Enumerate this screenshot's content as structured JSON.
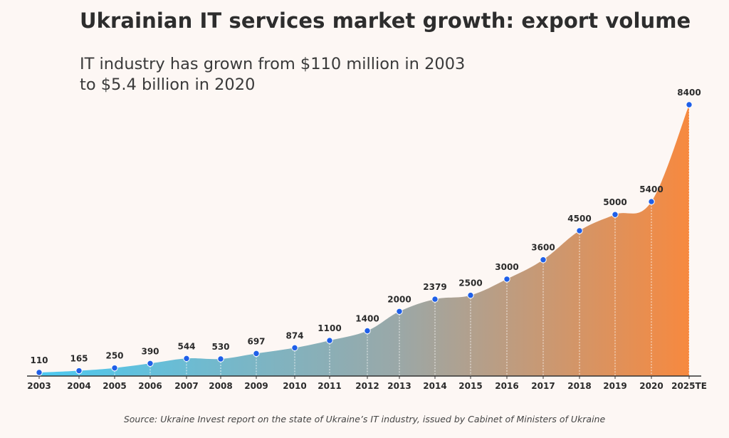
{
  "header": {
    "title": "Ukrainian IT services market growth: export volume",
    "subtitle_line1": "IT industry has grown from $110 million in 2003",
    "subtitle_line2": "to $5.4 billion in 2020"
  },
  "footer": {
    "source": "Source: Ukraine Invest report on the state of Ukraine’s IT industry, issued by Cabinet of Ministers of Ukraine"
  },
  "colors": {
    "gradient_start": "#4cc9f0",
    "gradient_mid": "#9aa8a8",
    "gradient_end": "#f7893f",
    "marker": "#1f5fe8",
    "axis": "#333333",
    "dropline": "#ffffff"
  },
  "chart_data": {
    "type": "area",
    "title": "Ukrainian IT services market growth: export volume",
    "subtitle": "IT industry has grown from $110 million in 2003 to $5.4 billion in 2020",
    "categories": [
      "2003",
      "2004",
      "2005",
      "2006",
      "2007",
      "2008",
      "2009",
      "2010",
      "2011",
      "2012",
      "2013",
      "2014",
      "2015",
      "2016",
      "2017",
      "2018",
      "2019",
      "2020",
      "2025TE"
    ],
    "values": [
      110,
      165,
      250,
      390,
      544,
      530,
      697,
      874,
      1100,
      1400,
      2000,
      2379,
      2500,
      3000,
      3600,
      4500,
      5000,
      5400,
      8400
    ],
    "ylim": [
      0,
      8400
    ],
    "xlabel": "",
    "ylabel": "",
    "grid": false,
    "legend": "none",
    "smooth": true,
    "markers": true,
    "data_labels": true
  }
}
